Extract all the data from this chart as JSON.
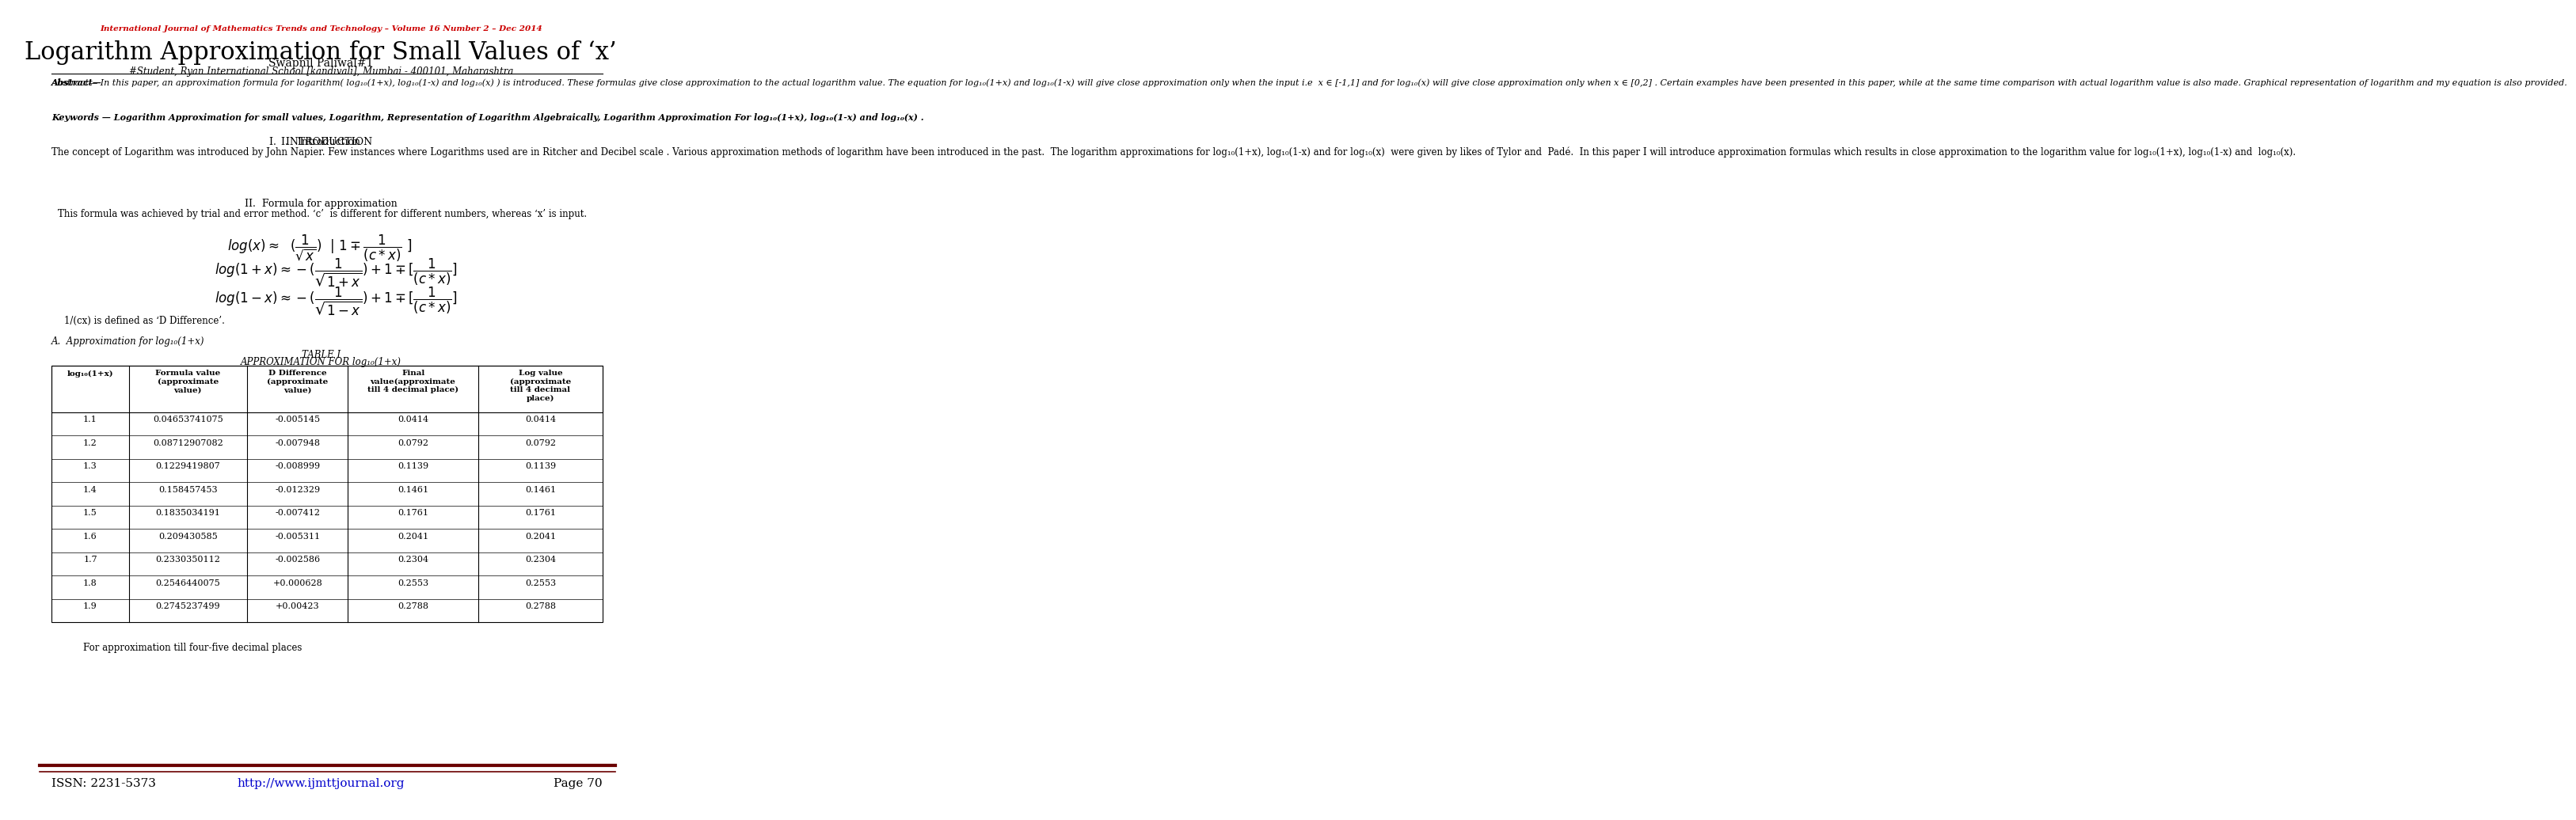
{
  "journal_header": "International Journal of Mathematics Trends and Technology – Volume 16 Number 2 – Dec 2014",
  "title": "Logarithm Approximation for Small Values of ‘x’",
  "author": "Swapnil Paliwal#1",
  "affiliation": "#Student, Ryan International School [kandivali], Mumbai - 400101, Maharashtra",
  "abstract_bold": "Abstract—",
  "abstract_text": "In this paper, an approximation formula for logarithm( log₁₀(1+x), log₁₀(1-x) and log₁₀(x) ) is introduced. These formulas give close approximation to the actual logarithm value. The equation for log₁₀(1+x) and log₁₀(1-x) will give close approximation only when the input i.e  x ∈ [-1,1] and for log₁₀(x) will give close approximation only when x ∈ [0,2] . Certain examples have been presented in this paper, while at the same time comparison with actual logarithm value is also made. Graphical representation of logarithm and my equation is also provided.",
  "keywords_bold": "Keywords —",
  "keywords_text": "Logarithm Approximation for small values, Logarithm, Representation of Logarithm Algebraically, Logarithm Approximation For log₁₀(1+x), log₁₀(1-x) and log₁₀(x) .",
  "section1_title": "I.   Introduction",
  "section1_text": "The concept of Logarithm was introduced by John Napier. Few instances where Logarithms used are in Ritcher and Decibel scale . Various approximation methods of logarithm have been introduced in the past.  The logarithm approximations for log₁₀(1+x), log₁₀(1-x) and for log₁₀(x)  were given by likes of Tylor and  Padé.  In this paper I will introduce approximation formulas which results in close approximation to the logarithm value for log₁₀(1+x), log₁₀(1-x) and  log₁₀(x).",
  "section2_title": "II.  Formula for approximation",
  "section2_intro": "This formula was achieved by trial and error method. ‘c’  is different for different numbers, whereas ‘x’ is input.",
  "d_diff_note": "1/(cx) is defined as ‘D Difference’.",
  "subsection_a": "A.  Approximation for log₁₀(1+x)",
  "table1_title": "TABLE I",
  "table1_subtitle": "APPROXIMATION FOR log₁₀(1+x)",
  "table_headers": [
    "log₁₀(1+x)",
    "Formula value\n(approximate\nvalue)",
    "D Difference\n(approximate\nvalue)",
    "Final\nvalue(approximate\ntill 4 decimal place)",
    "Log value\n(approximate\ntill 4 decimal\nplace)"
  ],
  "table_data": [
    [
      "1.1",
      "0.04653741075",
      "-0.005145",
      "0.0414",
      "0.0414"
    ],
    [
      "1.2",
      "0.08712907082",
      "-0.007948",
      "0.0792",
      "0.0792"
    ],
    [
      "1.3",
      "0.1229419807",
      "-0.008999",
      "0.1139",
      "0.1139"
    ],
    [
      "1.4",
      "0.158457453",
      "-0.012329",
      "0.1461",
      "0.1461"
    ],
    [
      "1.5",
      "0.1835034191",
      "-0.007412",
      "0.1761",
      "0.1761"
    ],
    [
      "1.6",
      "0.209430585",
      "-0.005311",
      "0.2041",
      "0.2041"
    ],
    [
      "1.7",
      "0.2330350112",
      "-0.002586",
      "0.2304",
      "0.2304"
    ],
    [
      "1.8",
      "0.2546440075",
      "+0.000628",
      "0.2553",
      "0.2553"
    ],
    [
      "1.9",
      "0.2745237499",
      "+0.00423",
      "0.2788",
      "0.2788"
    ]
  ],
  "footer_note": "For approximation till four-five decimal places",
  "issn": "ISSN: 2231-5373",
  "url": "http://www.ijmttjournal.org",
  "page": "Page 70",
  "bg_color": "#ffffff",
  "text_color": "#000000",
  "red_color": "#cc0000",
  "header_color": "#8b0000"
}
